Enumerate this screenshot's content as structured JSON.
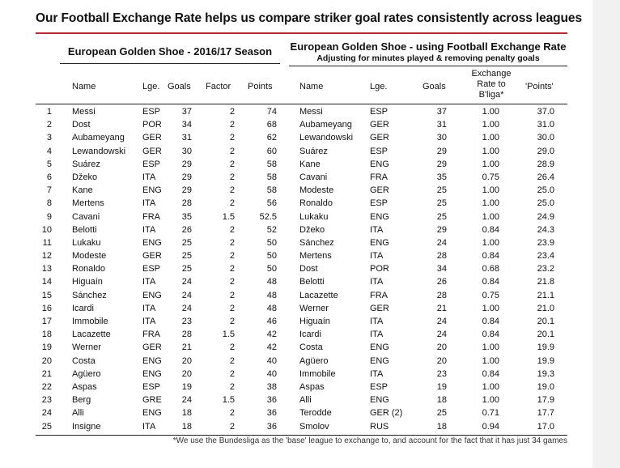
{
  "title": "Our Football Exchange Rate helps us compare striker goal rates consistently across leagues",
  "left": {
    "title": "European Golden Shoe - 2016/17 Season",
    "headers": {
      "name": "Name",
      "league": "Lge.",
      "goals": "Goals",
      "factor": "Factor",
      "points": "Points"
    }
  },
  "right": {
    "title": "European Golden Shoe - using Football Exchange Rate",
    "subtitle": "Adjusting for minutes played & removing penalty goals",
    "headers": {
      "name": "Name",
      "league": "Lge.",
      "goals": "Goals",
      "rate": "Exchange\nRate to\nB'liga*",
      "points": "'Points'"
    }
  },
  "rows": [
    {
      "rank": "1",
      "l": [
        "Messi",
        "ESP",
        "37",
        "2",
        "74"
      ],
      "r": [
        "Messi",
        "ESP",
        "37",
        "1.00",
        "37.0"
      ]
    },
    {
      "rank": "2",
      "l": [
        "Dost",
        "POR",
        "34",
        "2",
        "68"
      ],
      "r": [
        "Aubameyang",
        "GER",
        "31",
        "1.00",
        "31.0"
      ]
    },
    {
      "rank": "3",
      "l": [
        "Aubameyang",
        "GER",
        "31",
        "2",
        "62"
      ],
      "r": [
        "Lewandowski",
        "GER",
        "30",
        "1.00",
        "30.0"
      ]
    },
    {
      "rank": "4",
      "l": [
        "Lewandowski",
        "GER",
        "30",
        "2",
        "60"
      ],
      "r": [
        "Suárez",
        "ESP",
        "29",
        "1.00",
        "29.0"
      ]
    },
    {
      "rank": "5",
      "l": [
        "Suárez",
        "ESP",
        "29",
        "2",
        "58"
      ],
      "r": [
        "Kane",
        "ENG",
        "29",
        "1.00",
        "28.9"
      ]
    },
    {
      "rank": "6",
      "l": [
        "Džeko",
        "ITA",
        "29",
        "2",
        "58"
      ],
      "r": [
        "Cavani",
        "FRA",
        "35",
        "0.75",
        "26.4"
      ]
    },
    {
      "rank": "7",
      "l": [
        "Kane",
        "ENG",
        "29",
        "2",
        "58"
      ],
      "r": [
        "Modeste",
        "GER",
        "25",
        "1.00",
        "25.0"
      ]
    },
    {
      "rank": "8",
      "l": [
        "Mertens",
        "ITA",
        "28",
        "2",
        "56"
      ],
      "r": [
        "Ronaldo",
        "ESP",
        "25",
        "1.00",
        "25.0"
      ]
    },
    {
      "rank": "9",
      "l": [
        "Cavani",
        "FRA",
        "35",
        "1.5",
        "52.5"
      ],
      "r": [
        "Lukaku",
        "ENG",
        "25",
        "1.00",
        "24.9"
      ]
    },
    {
      "rank": "10",
      "l": [
        "Belotti",
        "ITA",
        "26",
        "2",
        "52"
      ],
      "r": [
        "Džeko",
        "ITA",
        "29",
        "0.84",
        "24.3"
      ]
    },
    {
      "rank": "11",
      "l": [
        "Lukaku",
        "ENG",
        "25",
        "2",
        "50"
      ],
      "r": [
        "Sánchez",
        "ENG",
        "24",
        "1.00",
        "23.9"
      ]
    },
    {
      "rank": "12",
      "l": [
        "Modeste",
        "GER",
        "25",
        "2",
        "50"
      ],
      "r": [
        "Mertens",
        "ITA",
        "28",
        "0.84",
        "23.4"
      ]
    },
    {
      "rank": "13",
      "l": [
        "Ronaldo",
        "ESP",
        "25",
        "2",
        "50"
      ],
      "r": [
        "Dost",
        "POR",
        "34",
        "0.68",
        "23.2"
      ]
    },
    {
      "rank": "14",
      "l": [
        "Higuaín",
        "ITA",
        "24",
        "2",
        "48"
      ],
      "r": [
        "Belotti",
        "ITA",
        "26",
        "0.84",
        "21.8"
      ]
    },
    {
      "rank": "15",
      "l": [
        "Sánchez",
        "ENG",
        "24",
        "2",
        "48"
      ],
      "r": [
        "Lacazette",
        "FRA",
        "28",
        "0.75",
        "21.1"
      ]
    },
    {
      "rank": "16",
      "l": [
        "Icardi",
        "ITA",
        "24",
        "2",
        "48"
      ],
      "r": [
        "Werner",
        "GER",
        "21",
        "1.00",
        "21.0"
      ]
    },
    {
      "rank": "17",
      "l": [
        "Immobile",
        "ITA",
        "23",
        "2",
        "46"
      ],
      "r": [
        "Higuaín",
        "ITA",
        "24",
        "0.84",
        "20.1"
      ]
    },
    {
      "rank": "18",
      "l": [
        "Lacazette",
        "FRA",
        "28",
        "1.5",
        "42"
      ],
      "r": [
        "Icardi",
        "ITA",
        "24",
        "0.84",
        "20.1"
      ]
    },
    {
      "rank": "19",
      "l": [
        "Werner",
        "GER",
        "21",
        "2",
        "42"
      ],
      "r": [
        "Costa",
        "ENG",
        "20",
        "1.00",
        "19.9"
      ]
    },
    {
      "rank": "20",
      "l": [
        "Costa",
        "ENG",
        "20",
        "2",
        "40"
      ],
      "r": [
        "Agüero",
        "ENG",
        "20",
        "1.00",
        "19.9"
      ]
    },
    {
      "rank": "21",
      "l": [
        "Agüero",
        "ENG",
        "20",
        "2",
        "40"
      ],
      "r": [
        "Immobile",
        "ITA",
        "23",
        "0.84",
        "19.3"
      ]
    },
    {
      "rank": "22",
      "l": [
        "Aspas",
        "ESP",
        "19",
        "2",
        "38"
      ],
      "r": [
        "Aspas",
        "ESP",
        "19",
        "1.00",
        "19.0"
      ]
    },
    {
      "rank": "23",
      "l": [
        "Berg",
        "GRE",
        "24",
        "1.5",
        "36"
      ],
      "r": [
        "Alli",
        "ENG",
        "18",
        "1.00",
        "17.9"
      ]
    },
    {
      "rank": "24",
      "l": [
        "Alli",
        "ENG",
        "18",
        "2",
        "36"
      ],
      "r": [
        "Terodde",
        "GER (2)",
        "25",
        "0.71",
        "17.7"
      ]
    },
    {
      "rank": "25",
      "l": [
        "Insigne",
        "ITA",
        "18",
        "2",
        "36"
      ],
      "r": [
        "Smolov",
        "RUS",
        "18",
        "0.94",
        "17.0"
      ]
    }
  ],
  "footnote": "*We use the Bundesliga as the 'base' league to exchange to, and account for the fact that it has just 34 games"
}
